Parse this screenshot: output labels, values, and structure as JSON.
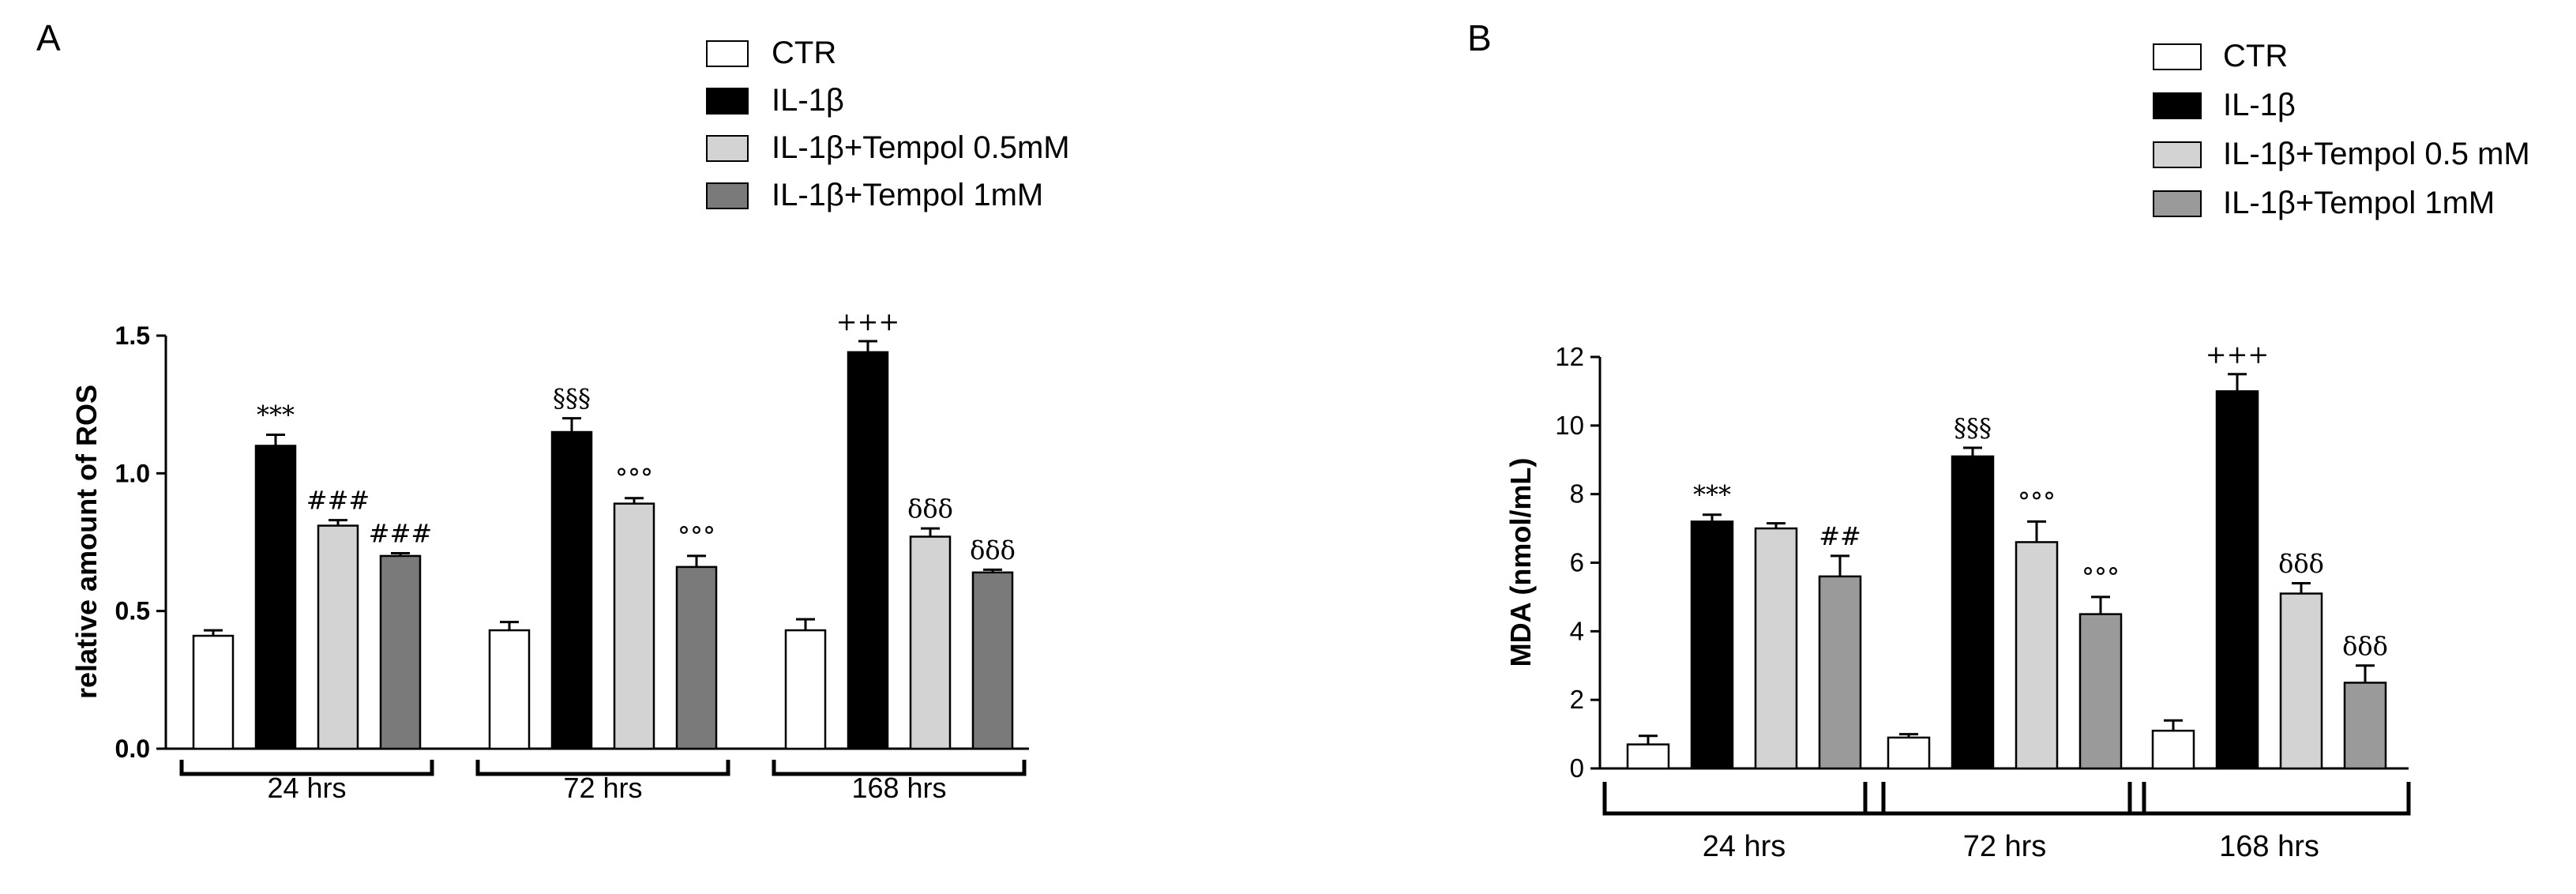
{
  "colors": {
    "CTR": "#ffffff",
    "IL-1β": "#000000",
    "IL-1β+Tempol 0.5mM": "#d3d3d3",
    "IL-1β+Tempol 1mM": "#7a7a7a",
    "panelB_tempol1": "#9a9a9a"
  },
  "chart_data": [
    {
      "panel": "A",
      "type": "bar",
      "title": "",
      "xlabel": "",
      "ylabel": "relative amount of ROS",
      "ylim": [
        0,
        1.5
      ],
      "yticks": [
        "0.0",
        "0.5",
        "1.0",
        "1.5"
      ],
      "categories": [
        "24 hrs",
        "72 hrs",
        "168 hrs"
      ],
      "legend": [
        "CTR",
        "IL-1β",
        "IL-1β+Tempol 0.5mM",
        "IL-1β+Tempol 1mM"
      ],
      "series": [
        {
          "name": "CTR",
          "values": [
            0.41,
            0.43,
            0.43
          ],
          "errors": [
            0.02,
            0.03,
            0.04
          ],
          "annotations": [
            "",
            "",
            ""
          ]
        },
        {
          "name": "IL-1β",
          "values": [
            1.1,
            1.15,
            1.44
          ],
          "errors": [
            0.04,
            0.05,
            0.04
          ],
          "annotations": [
            "***",
            "§§§",
            "+++"
          ]
        },
        {
          "name": "IL-1β+Tempol 0.5mM",
          "values": [
            0.81,
            0.89,
            0.77
          ],
          "errors": [
            0.02,
            0.02,
            0.03
          ],
          "annotations": [
            "###",
            "°°°",
            "δδδ"
          ]
        },
        {
          "name": "IL-1β+Tempol 1mM",
          "values": [
            0.7,
            0.66,
            0.64
          ],
          "errors": [
            0.01,
            0.04,
            0.01
          ],
          "annotations": [
            "###",
            "°°°",
            "δδδ"
          ]
        }
      ]
    },
    {
      "panel": "B",
      "type": "bar",
      "title": "",
      "xlabel": "",
      "ylabel": "MDA (nmol/mL)",
      "ylim": [
        0,
        12
      ],
      "yticks": [
        "0",
        "2",
        "4",
        "6",
        "8",
        "10",
        "12"
      ],
      "categories": [
        "24 hrs",
        "72 hrs",
        "168 hrs"
      ],
      "legend": [
        "CTR",
        "IL-1β",
        "IL-1β+Tempol 0.5 mM",
        "IL-1β+Tempol 1mM"
      ],
      "series": [
        {
          "name": "CTR",
          "values": [
            0.7,
            0.9,
            1.1
          ],
          "errors": [
            0.25,
            0.1,
            0.3
          ],
          "annotations": [
            "",
            "",
            ""
          ]
        },
        {
          "name": "IL-1β",
          "values": [
            7.2,
            9.1,
            11.0
          ],
          "errors": [
            0.2,
            0.25,
            0.5
          ],
          "annotations": [
            "***",
            "§§§",
            "+++"
          ]
        },
        {
          "name": "IL-1β+Tempol 0.5 mM",
          "values": [
            7.0,
            6.6,
            5.1
          ],
          "errors": [
            0.15,
            0.6,
            0.3
          ],
          "annotations": [
            "",
            "°°°",
            "δδδ"
          ]
        },
        {
          "name": "IL-1β+Tempol 1mM",
          "values": [
            5.6,
            4.5,
            2.5
          ],
          "errors": [
            0.6,
            0.5,
            0.5
          ],
          "annotations": [
            "##",
            "°°°",
            "δδδ"
          ]
        }
      ]
    }
  ]
}
